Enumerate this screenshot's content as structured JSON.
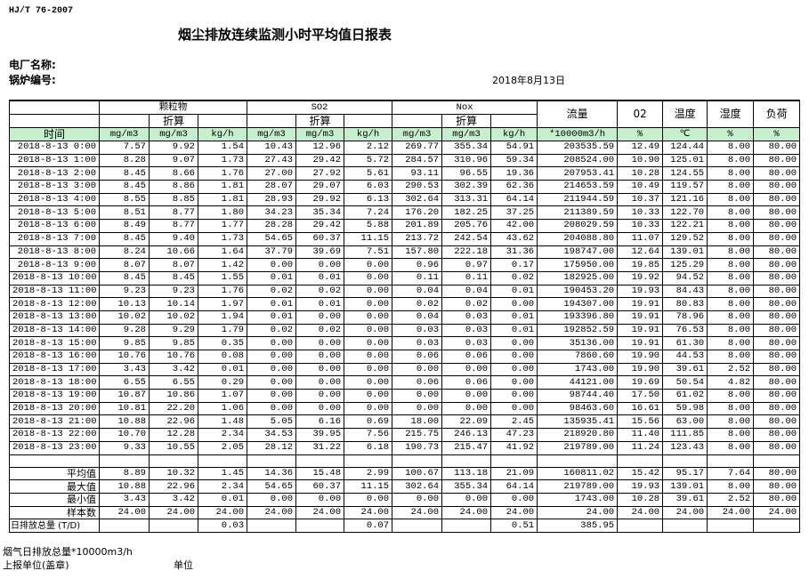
{
  "header": {
    "standard": "HJ/T  76-2007",
    "title": "烟尘排放连续监测小时平均值日报表",
    "plant_label": "电厂名称:",
    "boiler_label": "锅炉编号:",
    "date": "2018年8月13日"
  },
  "columns": {
    "particulate": "颗粒物",
    "so2": "SO2",
    "nox": "Nox",
    "converted": "折算",
    "flow": "流量",
    "o2": "02",
    "temp": "温度",
    "humidity": "湿度",
    "load": "负荷",
    "time": "时间",
    "units": [
      "mg/m3",
      "mg/m3",
      "kg/h",
      "mg/m3",
      "mg/m3",
      "kg/h",
      "mg/m3",
      "mg/m3",
      "kg/h",
      "*10000m3/h",
      "%",
      "℃",
      "%",
      "%"
    ]
  },
  "rows": [
    [
      "2018-8-13 0:00",
      "7.57",
      "9.92",
      "1.54",
      "10.43",
      "12.96",
      "2.12",
      "269.77",
      "355.34",
      "54.91",
      "203535.59",
      "12.49",
      "124.44",
      "8.00",
      "80.00"
    ],
    [
      "2018-8-13 1:00",
      "8.28",
      "9.07",
      "1.73",
      "27.43",
      "29.42",
      "5.72",
      "284.57",
      "310.96",
      "59.34",
      "208524.00",
      "10.90",
      "125.01",
      "8.00",
      "80.00"
    ],
    [
      "2018-8-13 2:00",
      "8.45",
      "8.66",
      "1.76",
      "27.00",
      "27.92",
      "5.61",
      "93.11",
      "96.55",
      "19.36",
      "207953.41",
      "10.28",
      "124.55",
      "8.00",
      "80.00"
    ],
    [
      "2018-8-13 3:00",
      "8.45",
      "8.86",
      "1.81",
      "28.07",
      "29.07",
      "6.03",
      "290.53",
      "302.39",
      "62.36",
      "214653.59",
      "10.49",
      "119.57",
      "8.00",
      "80.00"
    ],
    [
      "2018-8-13 4:00",
      "8.55",
      "8.85",
      "1.81",
      "28.93",
      "29.92",
      "6.13",
      "302.64",
      "313.31",
      "64.14",
      "211944.59",
      "10.37",
      "121.16",
      "8.00",
      "80.00"
    ],
    [
      "2018-8-13 5:00",
      "8.51",
      "8.77",
      "1.80",
      "34.23",
      "35.34",
      "7.24",
      "176.20",
      "182.25",
      "37.25",
      "211389.59",
      "10.33",
      "122.70",
      "8.00",
      "80.00"
    ],
    [
      "2018-8-13 6:00",
      "8.49",
      "8.77",
      "1.77",
      "28.28",
      "29.42",
      "5.88",
      "201.89",
      "205.76",
      "42.00",
      "208029.59",
      "10.33",
      "122.21",
      "8.00",
      "80.00"
    ],
    [
      "2018-8-13 7:00",
      "8.45",
      "9.40",
      "1.73",
      "54.65",
      "60.37",
      "11.15",
      "213.72",
      "242.54",
      "43.62",
      "204088.80",
      "11.07",
      "129.52",
      "8.00",
      "80.00"
    ],
    [
      "2018-8-13 8:00",
      "8.24",
      "10.66",
      "1.64",
      "37.79",
      "39.69",
      "7.51",
      "157.80",
      "222.18",
      "31.36",
      "198747.00",
      "12.64",
      "139.01",
      "8.00",
      "80.00"
    ],
    [
      "2018-8-13 9:00",
      "8.07",
      "8.07",
      "1.42",
      "0.00",
      "0.00",
      "0.00",
      "0.96",
      "0.97",
      "0.17",
      "175950.00",
      "19.85",
      "125.29",
      "8.00",
      "80.00"
    ],
    [
      "2018-8-13 10:00",
      "8.45",
      "8.45",
      "1.55",
      "0.01",
      "0.01",
      "0.00",
      "0.11",
      "0.11",
      "0.02",
      "182925.00",
      "19.92",
      "94.52",
      "8.00",
      "80.00"
    ],
    [
      "2018-8-13 11:00",
      "9.23",
      "9.23",
      "1.76",
      "0.02",
      "0.02",
      "0.00",
      "0.04",
      "0.04",
      "0.01",
      "190453.20",
      "19.93",
      "84.43",
      "8.00",
      "80.00"
    ],
    [
      "2018-8-13 12:00",
      "10.13",
      "10.14",
      "1.97",
      "0.01",
      "0.01",
      "0.00",
      "0.02",
      "0.02",
      "0.00",
      "194307.00",
      "19.91",
      "80.83",
      "8.00",
      "80.00"
    ],
    [
      "2018-8-13 13:00",
      "10.02",
      "10.02",
      "1.94",
      "0.01",
      "0.00",
      "0.00",
      "0.04",
      "0.03",
      "0.01",
      "193396.80",
      "19.91",
      "78.96",
      "8.00",
      "80.00"
    ],
    [
      "2018-8-13 14:00",
      "9.28",
      "9.29",
      "1.79",
      "0.02",
      "0.02",
      "0.00",
      "0.03",
      "0.03",
      "0.01",
      "192852.59",
      "19.91",
      "76.53",
      "8.00",
      "80.00"
    ],
    [
      "2018-8-13 15:00",
      "9.85",
      "9.85",
      "0.35",
      "0.00",
      "0.00",
      "0.00",
      "0.03",
      "0.03",
      "0.00",
      "35136.00",
      "19.91",
      "61.30",
      "8.00",
      "80.00"
    ],
    [
      "2018-8-13 16:00",
      "10.76",
      "10.76",
      "0.08",
      "0.00",
      "0.00",
      "0.00",
      "0.06",
      "0.06",
      "0.00",
      "7860.60",
      "19.90",
      "44.53",
      "8.00",
      "80.00"
    ],
    [
      "2018-8-13 17:00",
      "3.43",
      "3.42",
      "0.01",
      "0.00",
      "0.00",
      "0.00",
      "0.00",
      "0.00",
      "0.00",
      "1743.00",
      "19.90",
      "39.61",
      "2.52",
      "80.00"
    ],
    [
      "2018-8-13 18:00",
      "6.55",
      "6.55",
      "0.29",
      "0.00",
      "0.00",
      "0.00",
      "0.06",
      "0.06",
      "0.00",
      "44121.00",
      "19.69",
      "50.54",
      "4.82",
      "80.00"
    ],
    [
      "2018-8-13 19:00",
      "10.87",
      "10.86",
      "1.07",
      "0.00",
      "0.00",
      "0.00",
      "0.00",
      "0.00",
      "0.00",
      "98744.40",
      "17.50",
      "61.02",
      "8.00",
      "80.00"
    ],
    [
      "2018-8-13 20:00",
      "10.81",
      "22.20",
      "1.06",
      "0.00",
      "0.00",
      "0.00",
      "0.00",
      "0.00",
      "0.00",
      "98463.60",
      "16.61",
      "59.98",
      "8.00",
      "80.00"
    ],
    [
      "2018-8-13 21:00",
      "10.88",
      "22.96",
      "1.48",
      "5.05",
      "6.16",
      "0.69",
      "18.00",
      "22.09",
      "2.45",
      "135935.41",
      "15.56",
      "63.00",
      "8.00",
      "80.00"
    ],
    [
      "2018-8-13 22:00",
      "10.70",
      "12.28",
      "2.34",
      "34.53",
      "39.95",
      "7.56",
      "215.75",
      "246.13",
      "47.23",
      "218920.80",
      "11.40",
      "111.85",
      "8.00",
      "80.00"
    ],
    [
      "2018-8-13 23:00",
      "9.33",
      "10.55",
      "2.05",
      "28.12",
      "31.22",
      "6.18",
      "190.73",
      "215.47",
      "41.92",
      "219789.00",
      "11.24",
      "123.43",
      "8.00",
      "80.00"
    ]
  ],
  "summary": [
    [
      "平均值",
      "8.89",
      "10.32",
      "1.45",
      "14.36",
      "15.48",
      "2.99",
      "100.67",
      "113.18",
      "21.09",
      "160811.02",
      "15.42",
      "95.17",
      "7.64",
      "80.00"
    ],
    [
      "最大值",
      "10.88",
      "22.96",
      "2.34",
      "54.65",
      "60.37",
      "11.15",
      "302.64",
      "355.34",
      "64.14",
      "219789.00",
      "19.93",
      "139.01",
      "8.00",
      "80.00"
    ],
    [
      "最小值",
      "3.43",
      "3.42",
      "0.01",
      "0.00",
      "0.00",
      "0.00",
      "0.00",
      "0.00",
      "0.00",
      "1743.00",
      "10.28",
      "39.61",
      "2.52",
      "80.00"
    ],
    [
      "样本数",
      "24.00",
      "24.00",
      "24.00",
      "24.00",
      "24.00",
      "24.00",
      "24.00",
      "24.00",
      "24.00",
      "24.00",
      "24.00",
      "24.00",
      "24.00",
      "24.00"
    ],
    [
      "日排放总量 (T/D)",
      "",
      "",
      "0.03",
      "",
      "",
      "0.07",
      "",
      "",
      "0.51",
      "385.95",
      "",
      "",
      "",
      ""
    ]
  ],
  "footer": {
    "flue_total": "烟气日排放总量*10000m3/h",
    "reporter": "上报单位(盖章)",
    "unit": "单位"
  },
  "colors": {
    "header_green": "#c6efce"
  }
}
